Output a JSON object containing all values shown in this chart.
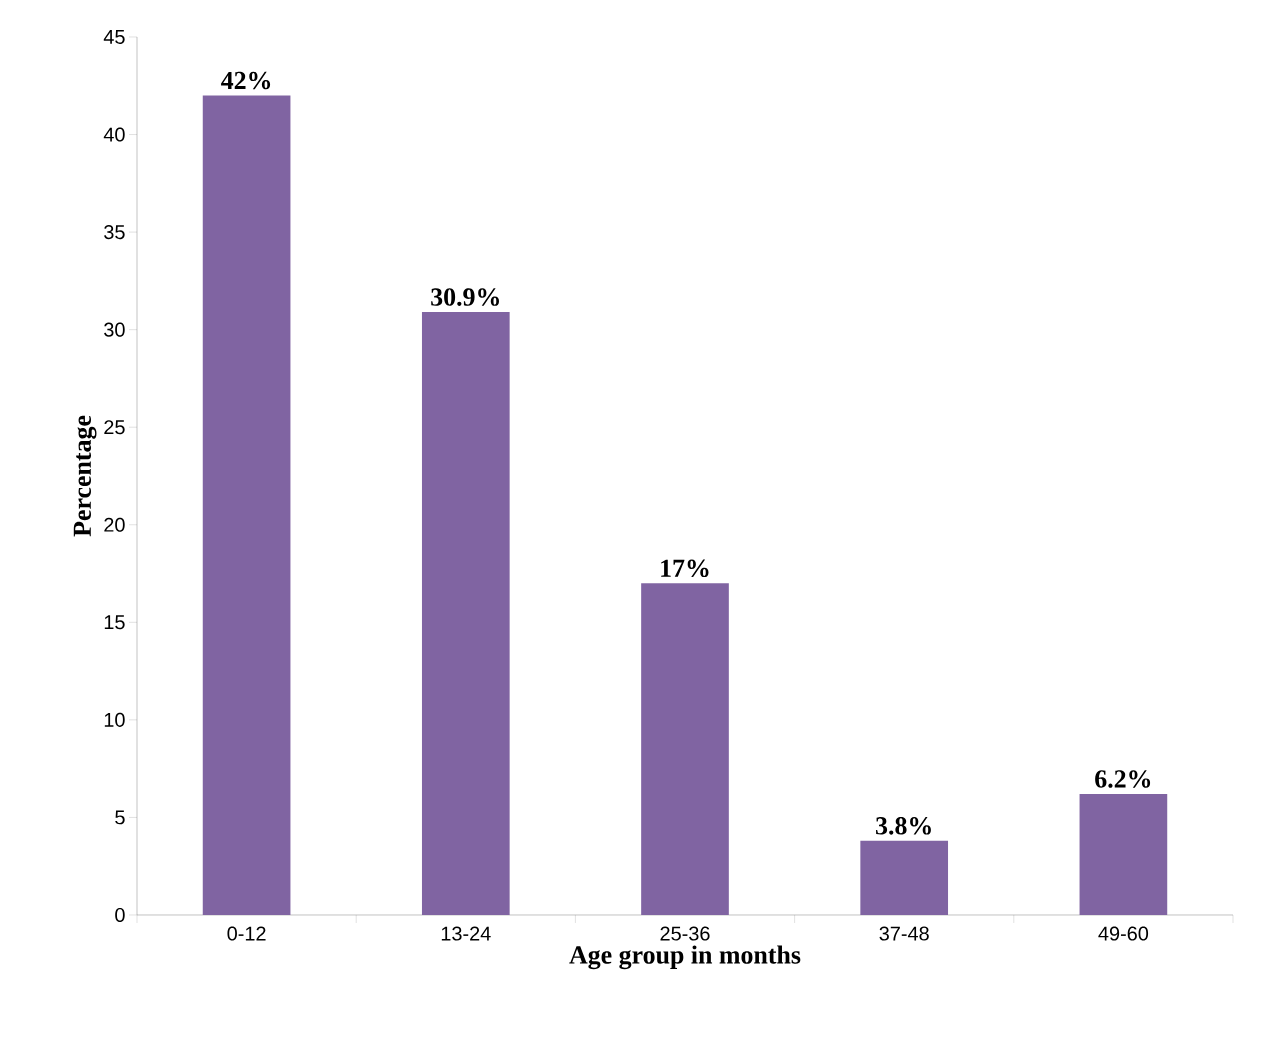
{
  "chart_data": {
    "type": "bar",
    "xlabel": "Age group in months",
    "ylabel": "Percentage",
    "categories": [
      "0-12",
      "13-24",
      "25-36",
      "37-48",
      "49-60"
    ],
    "values": [
      42,
      30.9,
      17,
      3.8,
      6.2
    ],
    "value_labels": [
      "42%",
      "30.9%",
      "17%",
      "3.8%",
      "6.2%"
    ],
    "color": "#8064a2",
    "ylim": [
      0,
      45
    ],
    "yticks": [
      0,
      5,
      10,
      15,
      20,
      25,
      30,
      35,
      40,
      45
    ]
  }
}
